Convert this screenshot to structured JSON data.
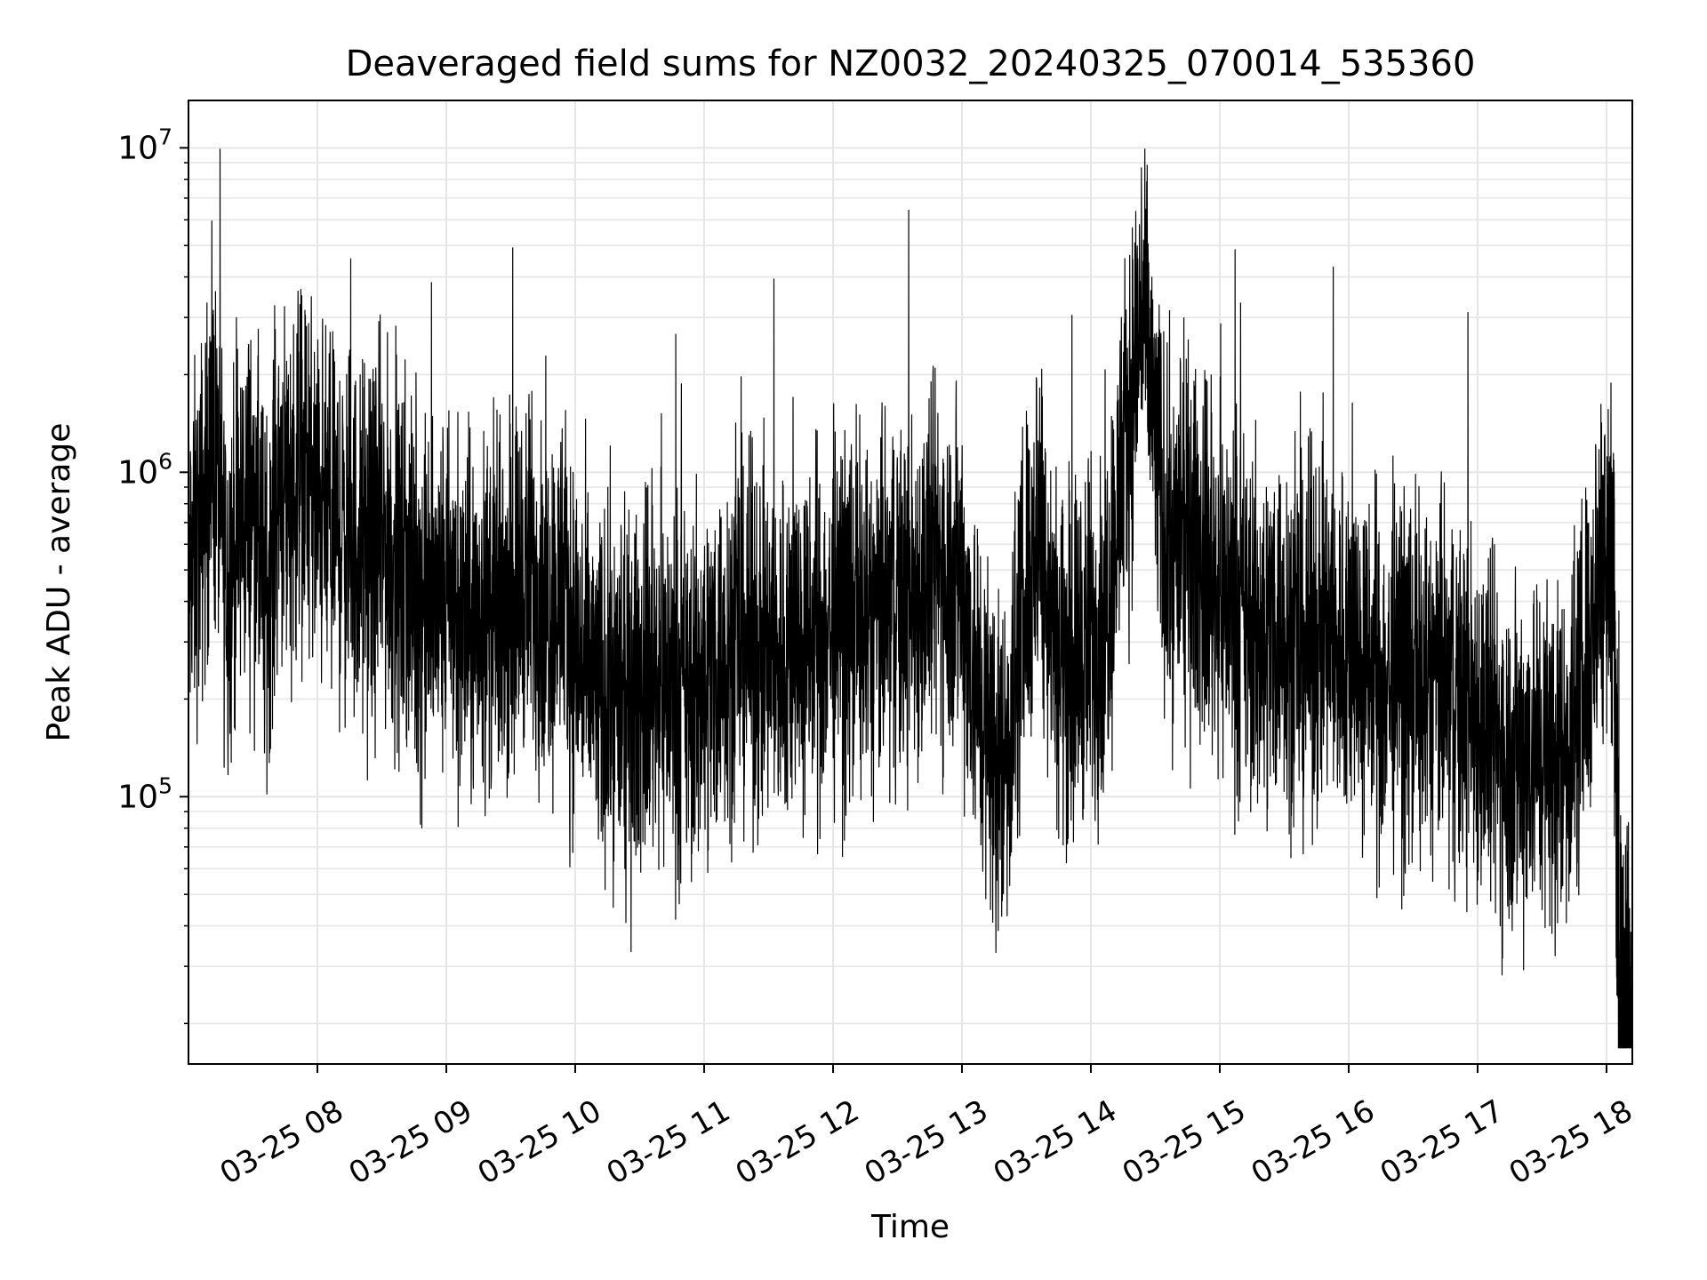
{
  "chart_data": {
    "type": "line",
    "title": "Deaveraged field sums for NZ0032_20240325_070014_535360",
    "xlabel": "Time",
    "ylabel": "Peak ADU - average",
    "yscale": "log",
    "grid": true,
    "x_tick_labels": [
      "03-25 08",
      "03-25 09",
      "03-25 10",
      "03-25 11",
      "03-25 12",
      "03-25 13",
      "03-25 14",
      "03-25 15",
      "03-25 16",
      "03-25 17",
      "03-25 18"
    ],
    "x_ticks_hours": [
      8,
      9,
      10,
      11,
      12,
      13,
      14,
      15,
      16,
      17,
      18
    ],
    "xlim_hours": [
      7.0,
      18.2
    ],
    "y_tick_labels": [
      {
        "base": "10",
        "exp": "5",
        "value": 100000
      },
      {
        "base": "10",
        "exp": "6",
        "value": 1000000
      },
      {
        "base": "10",
        "exp": "7",
        "value": 10000000
      }
    ],
    "ylim": [
      15000,
      14000000
    ],
    "series": [
      {
        "color": "#000000",
        "points": [
          [
            7.0,
            450000
          ],
          [
            7.1,
            700000
          ],
          [
            7.2,
            1200000
          ],
          [
            7.3,
            450000
          ],
          [
            7.4,
            700000
          ],
          [
            7.5,
            850000
          ],
          [
            7.6,
            400000
          ],
          [
            7.7,
            1000000
          ],
          [
            7.8,
            900000
          ],
          [
            7.9,
            1100000
          ],
          [
            8.0,
            800000
          ],
          [
            8.1,
            700000
          ],
          [
            8.2,
            650000
          ],
          [
            8.3,
            600000
          ],
          [
            8.4,
            550000
          ],
          [
            8.5,
            650000
          ],
          [
            8.6,
            500000
          ],
          [
            8.7,
            450000
          ],
          [
            8.8,
            400000
          ],
          [
            8.9,
            380000
          ],
          [
            9.0,
            420000
          ],
          [
            9.1,
            350000
          ],
          [
            9.2,
            330000
          ],
          [
            9.3,
            380000
          ],
          [
            9.4,
            360000
          ],
          [
            9.5,
            420000
          ],
          [
            9.6,
            480000
          ],
          [
            9.7,
            450000
          ],
          [
            9.8,
            400000
          ],
          [
            9.9,
            420000
          ],
          [
            10.0,
            300000
          ],
          [
            10.1,
            230000
          ],
          [
            10.2,
            200000
          ],
          [
            10.3,
            220000
          ],
          [
            10.4,
            180000
          ],
          [
            10.5,
            220000
          ],
          [
            10.6,
            250000
          ],
          [
            10.7,
            230000
          ],
          [
            10.8,
            210000
          ],
          [
            10.9,
            200000
          ],
          [
            11.0,
            230000
          ],
          [
            11.1,
            260000
          ],
          [
            11.2,
            300000
          ],
          [
            11.3,
            320000
          ],
          [
            11.4,
            280000
          ],
          [
            11.5,
            260000
          ],
          [
            11.6,
            270000
          ],
          [
            11.7,
            300000
          ],
          [
            11.8,
            280000
          ],
          [
            11.9,
            320000
          ],
          [
            12.0,
            330000
          ],
          [
            12.1,
            350000
          ],
          [
            12.2,
            360000
          ],
          [
            12.3,
            330000
          ],
          [
            12.4,
            380000
          ],
          [
            12.5,
            420000
          ],
          [
            12.6,
            400000
          ],
          [
            12.7,
            450000
          ],
          [
            12.8,
            520000
          ],
          [
            12.9,
            500000
          ],
          [
            13.0,
            480000
          ],
          [
            13.1,
            230000
          ],
          [
            13.2,
            160000
          ],
          [
            13.3,
            120000
          ],
          [
            13.4,
            200000
          ],
          [
            13.5,
            450000
          ],
          [
            13.6,
            800000
          ],
          [
            13.7,
            400000
          ],
          [
            13.8,
            250000
          ],
          [
            13.9,
            280000
          ],
          [
            14.0,
            300000
          ],
          [
            14.1,
            350000
          ],
          [
            14.2,
            700000
          ],
          [
            14.3,
            1500000
          ],
          [
            14.4,
            3500000
          ],
          [
            14.5,
            1200000
          ],
          [
            14.6,
            550000
          ],
          [
            14.7,
            650000
          ],
          [
            14.8,
            600000
          ],
          [
            14.9,
            500000
          ],
          [
            15.0,
            450000
          ],
          [
            15.1,
            400000
          ],
          [
            15.2,
            350000
          ],
          [
            15.3,
            300000
          ],
          [
            15.4,
            330000
          ],
          [
            15.5,
            350000
          ],
          [
            15.6,
            280000
          ],
          [
            15.7,
            300000
          ],
          [
            15.8,
            320000
          ],
          [
            15.9,
            280000
          ],
          [
            16.0,
            300000
          ],
          [
            16.1,
            250000
          ],
          [
            16.2,
            230000
          ],
          [
            16.3,
            220000
          ],
          [
            16.4,
            240000
          ],
          [
            16.5,
            220000
          ],
          [
            16.6,
            210000
          ],
          [
            16.7,
            230000
          ],
          [
            16.8,
            210000
          ],
          [
            16.9,
            200000
          ],
          [
            17.0,
            180000
          ],
          [
            17.1,
            150000
          ],
          [
            17.2,
            140000
          ],
          [
            17.3,
            130000
          ],
          [
            17.4,
            150000
          ],
          [
            17.5,
            140000
          ],
          [
            17.6,
            130000
          ],
          [
            17.7,
            150000
          ],
          [
            17.8,
            200000
          ],
          [
            17.9,
            400000
          ],
          [
            18.0,
            700000
          ],
          [
            18.05,
            600000
          ],
          [
            18.1,
            25000
          ],
          [
            18.15,
            22000
          ],
          [
            18.2,
            21000
          ]
        ]
      }
    ]
  }
}
